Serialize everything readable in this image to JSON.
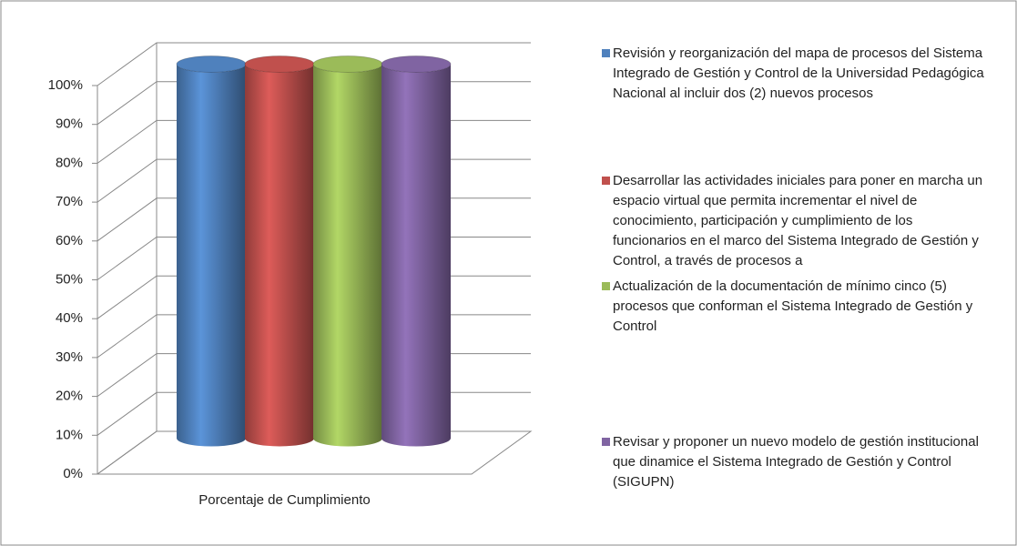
{
  "chart_data": {
    "type": "bar3d-cylinder",
    "categories": [
      "Porcentaje de Cumplimiento"
    ],
    "series": [
      {
        "name": "Revisión y reorganización del mapa de procesos del Sistema Integrado de Gestión y Control de la Universidad Pedagógica Nacional al incluir dos (2) nuevos procesos",
        "color": "#4f81bd",
        "values": [
          100
        ]
      },
      {
        "name": "Desarrollar las actividades iniciales para poner en marcha un espacio virtual que permita incrementar el nivel de conocimiento, participación y cumplimiento de los funcionarios en el marco del Sistema Integrado de Gestión y Control, a través de procesos a",
        "color": "#c0504d",
        "values": [
          100
        ]
      },
      {
        "name": "Actualización de la documentación de mínimo cinco (5) procesos que conforman el Sistema Integrado de Gestión y Control",
        "color": "#9bbb59",
        "values": [
          100
        ]
      },
      {
        "name": "Revisar y proponer un nuevo modelo de gestión institucional que dinamice el Sistema Integrado de Gestión y Control (SIGUPN)",
        "color": "#8064a2",
        "values": [
          100
        ]
      }
    ],
    "ylim": [
      0,
      100
    ],
    "yticks": [
      {
        "value": 0,
        "label": "0%"
      },
      {
        "value": 10,
        "label": "10%"
      },
      {
        "value": 20,
        "label": "20%"
      },
      {
        "value": 30,
        "label": "30%"
      },
      {
        "value": 40,
        "label": "40%"
      },
      {
        "value": 50,
        "label": "50%"
      },
      {
        "value": 60,
        "label": "60%"
      },
      {
        "value": 70,
        "label": "70%"
      },
      {
        "value": 80,
        "label": "80%"
      },
      {
        "value": 90,
        "label": "90%"
      },
      {
        "value": 100,
        "label": "100%"
      }
    ],
    "grid": true,
    "legend": "right"
  }
}
